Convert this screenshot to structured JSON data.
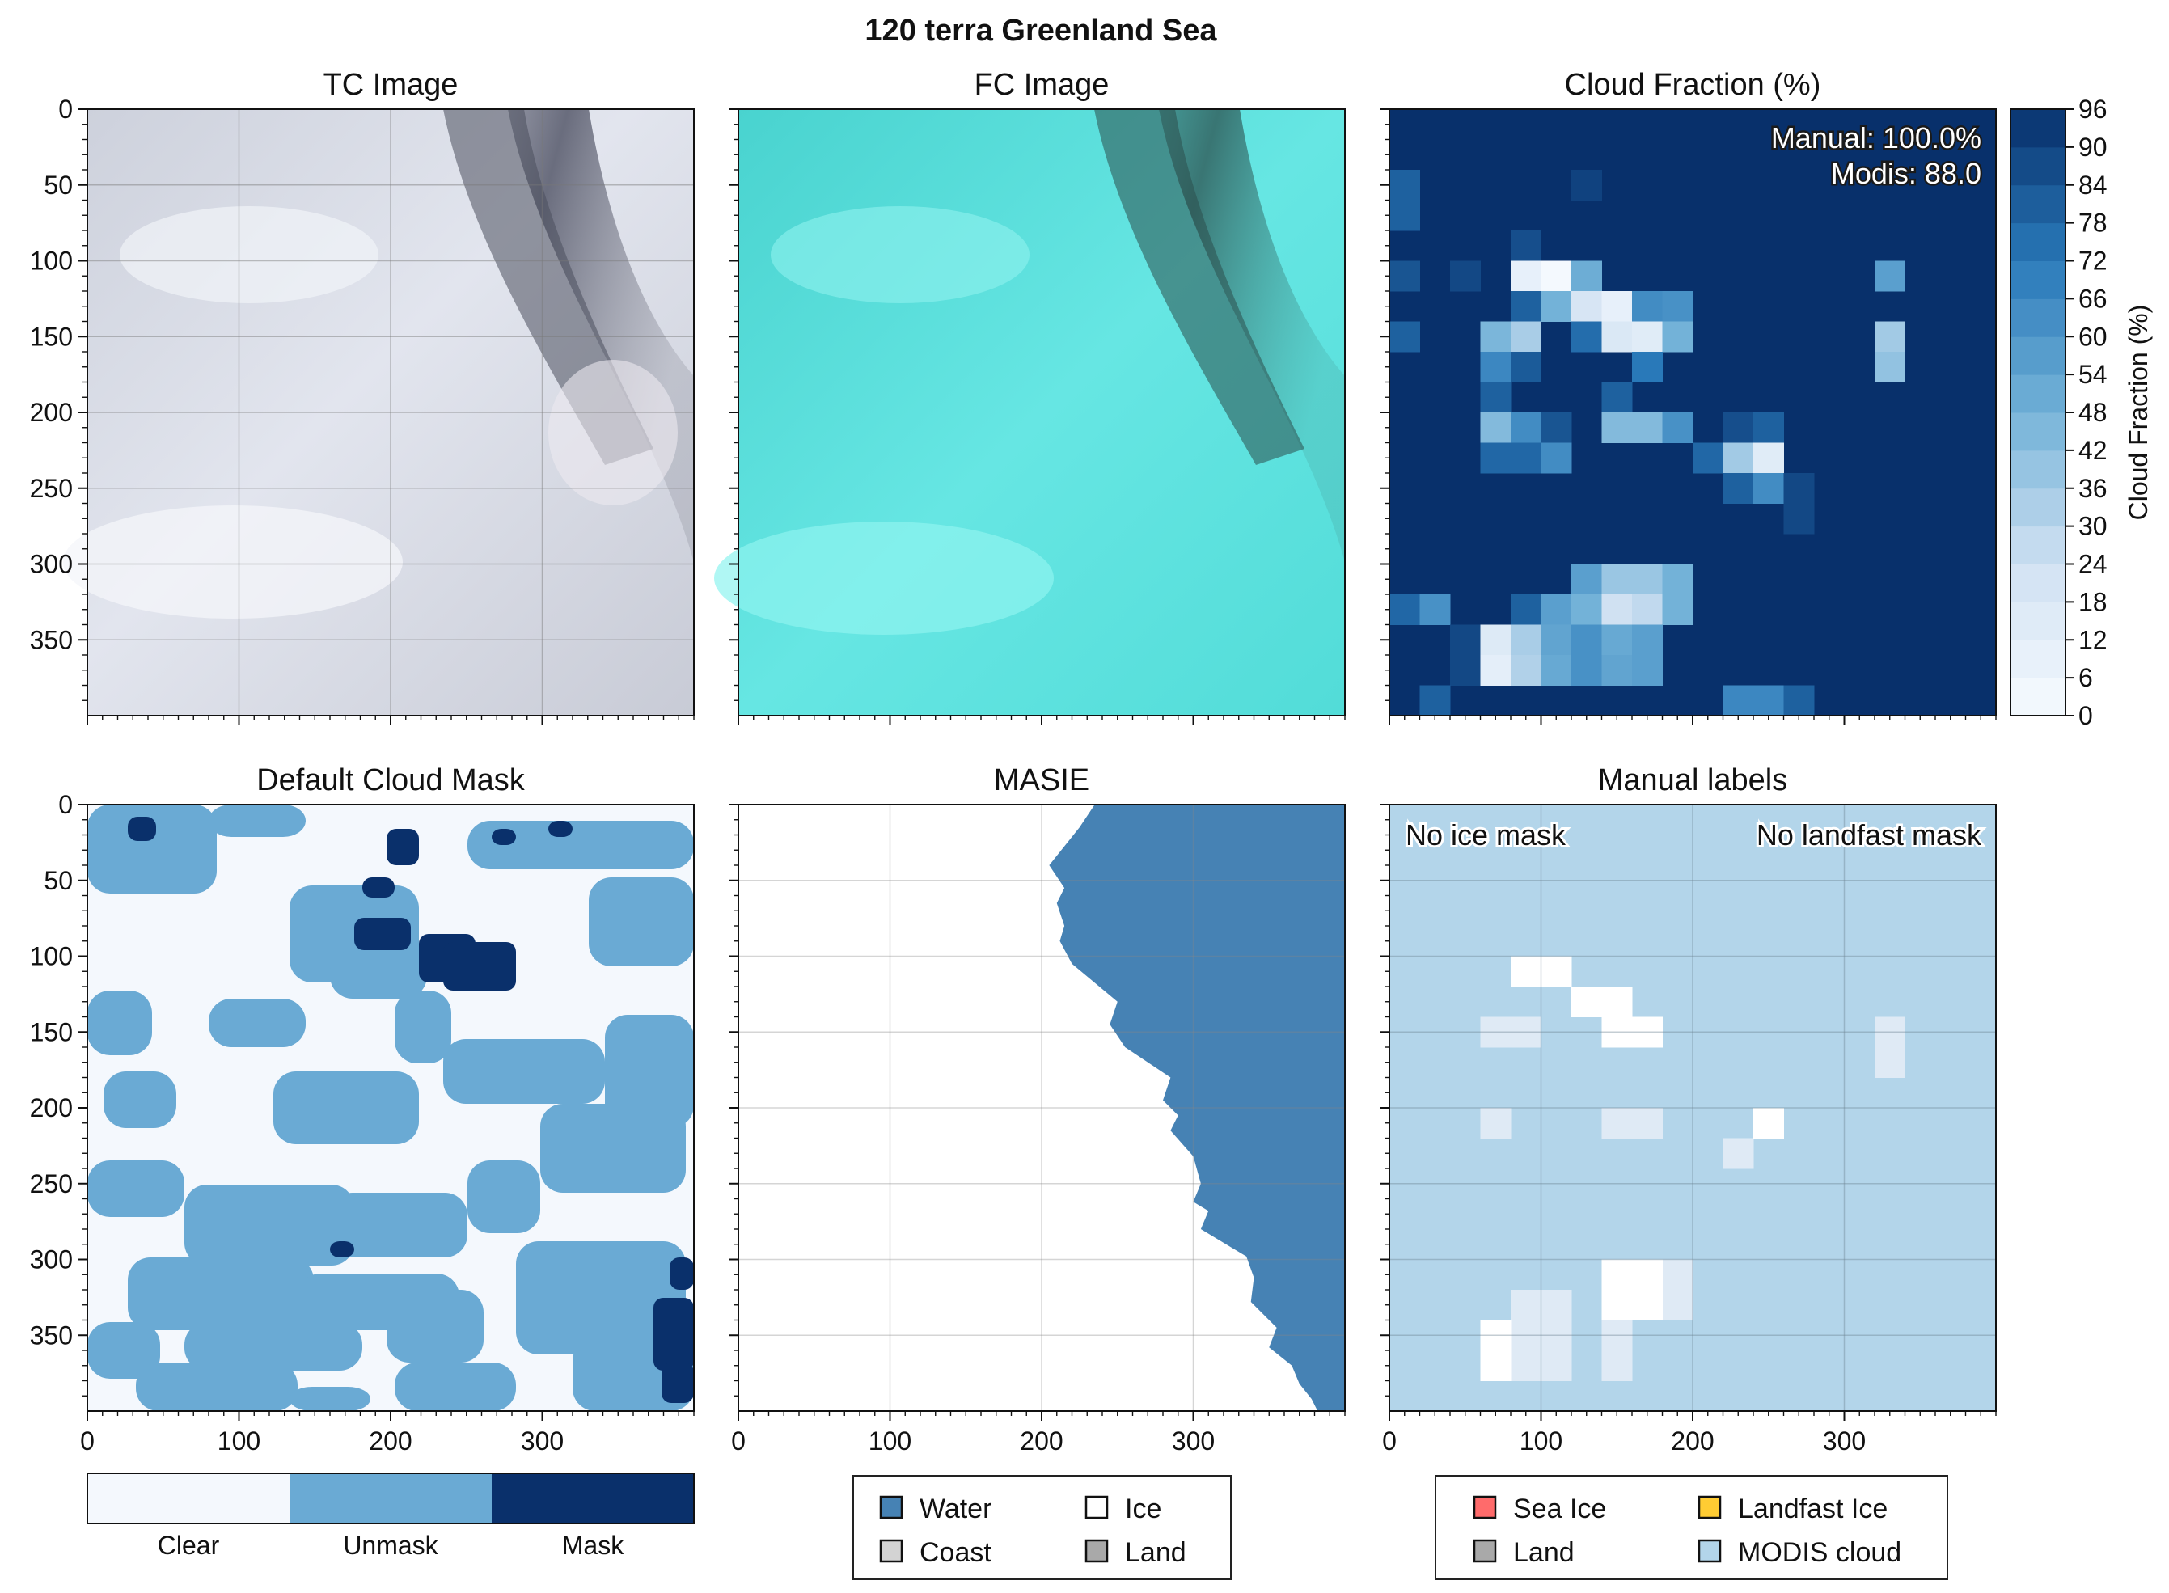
{
  "figure": {
    "suptitle": "120 terra Greenland Sea"
  },
  "chart_data": [
    {
      "type": "image",
      "title": "TC Image",
      "xlim": [
        0,
        400
      ],
      "ylim": [
        400,
        0
      ],
      "yticks": [
        0,
        50,
        100,
        150,
        200,
        250,
        300,
        350
      ],
      "description_colors": [
        "#d9dce6",
        "#6b6e78"
      ]
    },
    {
      "type": "image",
      "title": "FC Image",
      "xlim": [
        0,
        400
      ],
      "ylim": [
        400,
        0
      ],
      "description_colors": [
        "#5fe3e0",
        "#3b6a68"
      ]
    },
    {
      "type": "heatmap",
      "title": "Cloud Fraction (%)",
      "cell_size": 20,
      "xlim": [
        0,
        400
      ],
      "ylim": [
        400,
        0
      ],
      "annotations": [
        "Manual: 100.0%",
        "Modis: 88.0"
      ],
      "colorbar": {
        "label": "Cloud Fraction (%)",
        "ticks": [
          "0",
          "6",
          "12",
          "18",
          "24",
          "30",
          "36",
          "42",
          "48",
          "54",
          "60",
          "66",
          "72",
          "78",
          "84",
          "90",
          "96"
        ],
        "range": [
          0,
          96
        ]
      },
      "default_value": 96,
      "cells": [
        {
          "r": 2,
          "c": 0,
          "v": 80
        },
        {
          "r": 3,
          "c": 0,
          "v": 80
        },
        {
          "r": 2,
          "c": 6,
          "v": 90
        },
        {
          "r": 4,
          "c": 4,
          "v": 86
        },
        {
          "r": 5,
          "c": 0,
          "v": 84
        },
        {
          "r": 5,
          "c": 2,
          "v": 88
        },
        {
          "r": 5,
          "c": 4,
          "v": 10
        },
        {
          "r": 5,
          "c": 5,
          "v": 2
        },
        {
          "r": 5,
          "c": 6,
          "v": 50
        },
        {
          "r": 5,
          "c": 16,
          "v": 56
        },
        {
          "r": 6,
          "c": 4,
          "v": 80
        },
        {
          "r": 6,
          "c": 5,
          "v": 48
        },
        {
          "r": 6,
          "c": 6,
          "v": 20
        },
        {
          "r": 6,
          "c": 7,
          "v": 10
        },
        {
          "r": 6,
          "c": 8,
          "v": 64
        },
        {
          "r": 6,
          "c": 9,
          "v": 62
        },
        {
          "r": 7,
          "c": 0,
          "v": 80
        },
        {
          "r": 7,
          "c": 3,
          "v": 46
        },
        {
          "r": 7,
          "c": 4,
          "v": 34
        },
        {
          "r": 7,
          "c": 6,
          "v": 76
        },
        {
          "r": 7,
          "c": 7,
          "v": 18
        },
        {
          "r": 7,
          "c": 8,
          "v": 14
        },
        {
          "r": 7,
          "c": 9,
          "v": 48
        },
        {
          "r": 7,
          "c": 16,
          "v": 36
        },
        {
          "r": 8,
          "c": 3,
          "v": 66
        },
        {
          "r": 8,
          "c": 4,
          "v": 82
        },
        {
          "r": 8,
          "c": 8,
          "v": 72
        },
        {
          "r": 8,
          "c": 16,
          "v": 40
        },
        {
          "r": 9,
          "c": 3,
          "v": 80
        },
        {
          "r": 9,
          "c": 7,
          "v": 80
        },
        {
          "r": 10,
          "c": 3,
          "v": 44
        },
        {
          "r": 10,
          "c": 4,
          "v": 64
        },
        {
          "r": 10,
          "c": 5,
          "v": 84
        },
        {
          "r": 10,
          "c": 7,
          "v": 44
        },
        {
          "r": 10,
          "c": 8,
          "v": 44
        },
        {
          "r": 10,
          "c": 9,
          "v": 62
        },
        {
          "r": 10,
          "c": 11,
          "v": 86
        },
        {
          "r": 10,
          "c": 12,
          "v": 80
        },
        {
          "r": 11,
          "c": 3,
          "v": 78
        },
        {
          "r": 11,
          "c": 4,
          "v": 78
        },
        {
          "r": 11,
          "c": 5,
          "v": 64
        },
        {
          "r": 11,
          "c": 10,
          "v": 78
        },
        {
          "r": 11,
          "c": 11,
          "v": 36
        },
        {
          "r": 11,
          "c": 12,
          "v": 14
        },
        {
          "r": 12,
          "c": 11,
          "v": 80
        },
        {
          "r": 12,
          "c": 12,
          "v": 64
        },
        {
          "r": 12,
          "c": 13,
          "v": 88
        },
        {
          "r": 13,
          "c": 13,
          "v": 88
        },
        {
          "r": 15,
          "c": 6,
          "v": 56
        },
        {
          "r": 15,
          "c": 7,
          "v": 38
        },
        {
          "r": 15,
          "c": 8,
          "v": 38
        },
        {
          "r": 15,
          "c": 9,
          "v": 48
        },
        {
          "r": 16,
          "c": 0,
          "v": 78
        },
        {
          "r": 16,
          "c": 1,
          "v": 62
        },
        {
          "r": 16,
          "c": 4,
          "v": 80
        },
        {
          "r": 16,
          "c": 5,
          "v": 56
        },
        {
          "r": 16,
          "c": 6,
          "v": 48
        },
        {
          "r": 16,
          "c": 7,
          "v": 24
        },
        {
          "r": 16,
          "c": 8,
          "v": 28
        },
        {
          "r": 16,
          "c": 9,
          "v": 48
        },
        {
          "r": 17,
          "c": 2,
          "v": 88
        },
        {
          "r": 17,
          "c": 3,
          "v": 16
        },
        {
          "r": 17,
          "c": 4,
          "v": 34
        },
        {
          "r": 17,
          "c": 5,
          "v": 54
        },
        {
          "r": 17,
          "c": 6,
          "v": 62
        },
        {
          "r": 17,
          "c": 7,
          "v": 52
        },
        {
          "r": 17,
          "c": 8,
          "v": 56
        },
        {
          "r": 18,
          "c": 2,
          "v": 88
        },
        {
          "r": 18,
          "c": 3,
          "v": 12
        },
        {
          "r": 18,
          "c": 4,
          "v": 32
        },
        {
          "r": 18,
          "c": 5,
          "v": 52
        },
        {
          "r": 18,
          "c": 6,
          "v": 62
        },
        {
          "r": 18,
          "c": 7,
          "v": 54
        },
        {
          "r": 18,
          "c": 8,
          "v": 56
        },
        {
          "r": 19,
          "c": 1,
          "v": 80
        },
        {
          "r": 19,
          "c": 11,
          "v": 66
        },
        {
          "r": 19,
          "c": 12,
          "v": 66
        },
        {
          "r": 19,
          "c": 13,
          "v": 80
        }
      ]
    },
    {
      "type": "categorical_map",
      "title": "Default Cloud Mask",
      "xlim": [
        0,
        400
      ],
      "ylim": [
        400,
        0
      ],
      "xticks": [
        "0",
        "100",
        "200",
        "300"
      ],
      "categories": [
        "Clear",
        "Unmask",
        "Mask"
      ],
      "colors": [
        "#f4f8fd",
        "#6aaad4",
        "#0a306b"
      ]
    },
    {
      "type": "categorical_map",
      "title": "MASIE",
      "xlim": [
        0,
        400
      ],
      "ylim": [
        400,
        0
      ],
      "legend": [
        "Water",
        "Ice",
        "Coast",
        "Land"
      ],
      "legend_colors": [
        "#4682b4",
        "#ffffff",
        "#d3d3d3",
        "#a9a9a9"
      ],
      "ice_edge": [
        {
          "y": 0,
          "x": 235
        },
        {
          "y": 15,
          "x": 225
        },
        {
          "y": 40,
          "x": 205
        },
        {
          "y": 55,
          "x": 215
        },
        {
          "y": 65,
          "x": 210
        },
        {
          "y": 80,
          "x": 215
        },
        {
          "y": 90,
          "x": 212
        },
        {
          "y": 105,
          "x": 220
        },
        {
          "y": 130,
          "x": 250
        },
        {
          "y": 145,
          "x": 245
        },
        {
          "y": 160,
          "x": 255
        },
        {
          "y": 180,
          "x": 285
        },
        {
          "y": 195,
          "x": 280
        },
        {
          "y": 205,
          "x": 290
        },
        {
          "y": 215,
          "x": 285
        },
        {
          "y": 232,
          "x": 300
        },
        {
          "y": 250,
          "x": 305
        },
        {
          "y": 262,
          "x": 300
        },
        {
          "y": 268,
          "x": 310
        },
        {
          "y": 280,
          "x": 305
        },
        {
          "y": 298,
          "x": 335
        },
        {
          "y": 312,
          "x": 340
        },
        {
          "y": 328,
          "x": 338
        },
        {
          "y": 345,
          "x": 355
        },
        {
          "y": 358,
          "x": 350
        },
        {
          "y": 370,
          "x": 365
        },
        {
          "y": 382,
          "x": 370
        },
        {
          "y": 392,
          "x": 378
        },
        {
          "y": 400,
          "x": 382
        }
      ]
    },
    {
      "type": "categorical_map",
      "title": "Manual labels",
      "xlim": [
        0,
        400
      ],
      "ylim": [
        400,
        0
      ],
      "annotations": [
        "No ice mask",
        "No landfast mask"
      ],
      "legend": [
        "Sea Ice",
        "Landfast Ice",
        "Land",
        "MODIS cloud"
      ],
      "legend_colors": [
        "#ff6b6b",
        "#ffcc33",
        "#a9a9a9",
        "#b3d5ea"
      ],
      "background": "#b3d5ea",
      "white_cells": [
        {
          "r": 5,
          "c": 4
        },
        {
          "r": 5,
          "c": 5
        },
        {
          "r": 6,
          "c": 6
        },
        {
          "r": 6,
          "c": 7
        },
        {
          "r": 7,
          "c": 7
        },
        {
          "r": 7,
          "c": 8
        },
        {
          "r": 10,
          "c": 12
        },
        {
          "r": 15,
          "c": 7
        },
        {
          "r": 15,
          "c": 8
        },
        {
          "r": 16,
          "c": 7
        },
        {
          "r": 16,
          "c": 8
        },
        {
          "r": 17,
          "c": 3
        },
        {
          "r": 18,
          "c": 3
        }
      ],
      "faint_cells": [
        {
          "r": 7,
          "c": 3
        },
        {
          "r": 7,
          "c": 4
        },
        {
          "r": 7,
          "c": 16
        },
        {
          "r": 8,
          "c": 16
        },
        {
          "r": 10,
          "c": 3
        },
        {
          "r": 10,
          "c": 7
        },
        {
          "r": 10,
          "c": 8
        },
        {
          "r": 11,
          "c": 11
        },
        {
          "r": 15,
          "c": 9
        },
        {
          "r": 16,
          "c": 9
        },
        {
          "r": 16,
          "c": 4
        },
        {
          "r": 16,
          "c": 5
        },
        {
          "r": 17,
          "c": 4
        },
        {
          "r": 17,
          "c": 5
        },
        {
          "r": 17,
          "c": 7
        },
        {
          "r": 18,
          "c": 4
        },
        {
          "r": 18,
          "c": 5
        },
        {
          "r": 18,
          "c": 7
        }
      ]
    }
  ]
}
